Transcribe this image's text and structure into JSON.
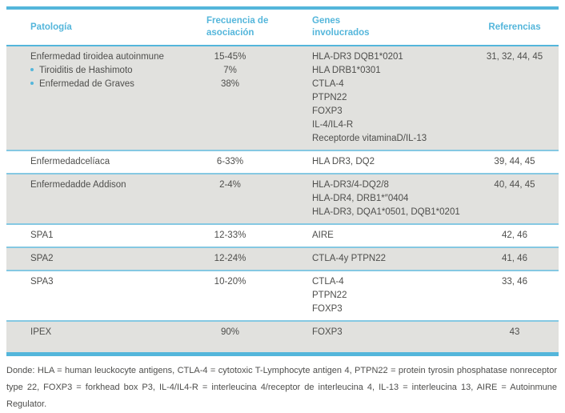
{
  "colors": {
    "accent_blue": "#54b6db",
    "separator_blue": "#85c8e2",
    "row_gray": "#e1e1de",
    "body_text": "#4e4e4c"
  },
  "table": {
    "headers": {
      "pathology": "Patología",
      "frequency": "Frecuencia de asociación",
      "genes": "Genes involucrados",
      "references": "Referencias"
    }
  },
  "rows": [
    {
      "pathology": "Enfermedad tiroidea autoinmune",
      "frequency": "15-45%",
      "sub_items": [
        {
          "label": "Tiroiditis de Hashimoto",
          "freq": "7%"
        },
        {
          "label": "Enfermedad de Graves",
          "freq": "38%"
        }
      ],
      "genes": [
        "HLA-DR3 DQB1*0201",
        "HLA DRB1*0301",
        "CTLA-4",
        "PTPN22",
        "FOXP3",
        "IL-4/IL4-R",
        "Receptorde vitaminaD/IL-13"
      ],
      "references": "31, 32, 44, 45"
    },
    {
      "pathology": "Enfermedadcelíaca",
      "frequency": "6-33%",
      "genes": [
        "HLA DR3, DQ2"
      ],
      "references": "39, 44, 45"
    },
    {
      "pathology": "Enfermedadde Addison",
      "frequency": "2-4%",
      "genes": [
        "HLA-DR3/4-DQ2/8",
        "HLA-DR4, DRB1*″0404",
        "HLA-DR3, DQA1*0501, DQB1*0201"
      ],
      "references": "40, 44, 45"
    },
    {
      "pathology": "SPA1",
      "frequency": "12-33%",
      "genes": [
        "AIRE"
      ],
      "references": "42, 46"
    },
    {
      "pathology": "SPA2",
      "frequency": "12-24%",
      "genes": [
        "CTLA-4y PTPN22"
      ],
      "references": "41, 46"
    },
    {
      "pathology": "SPA3",
      "frequency": "10-20%",
      "genes": [
        "CTLA-4",
        "PTPN22",
        "FOXP3"
      ],
      "references": "33, 46"
    },
    {
      "pathology": "IPEX",
      "frequency": "90%",
      "genes": [
        "FOXP3"
      ],
      "references": "43"
    }
  ],
  "footer": "Donde: HLA = human leuckocyte antigens, CTLA-4 = cytotoxic T-Lymphocyte antigen 4, PTPN22 = protein tyrosin phosphatase nonreceptor type 22, FOXP3 = forkhead box P3, IL-4/IL4-R = interleucina 4/receptor de interleucina 4, IL-13 = interleucina 13, AIRE = Autoinmune Regulator."
}
